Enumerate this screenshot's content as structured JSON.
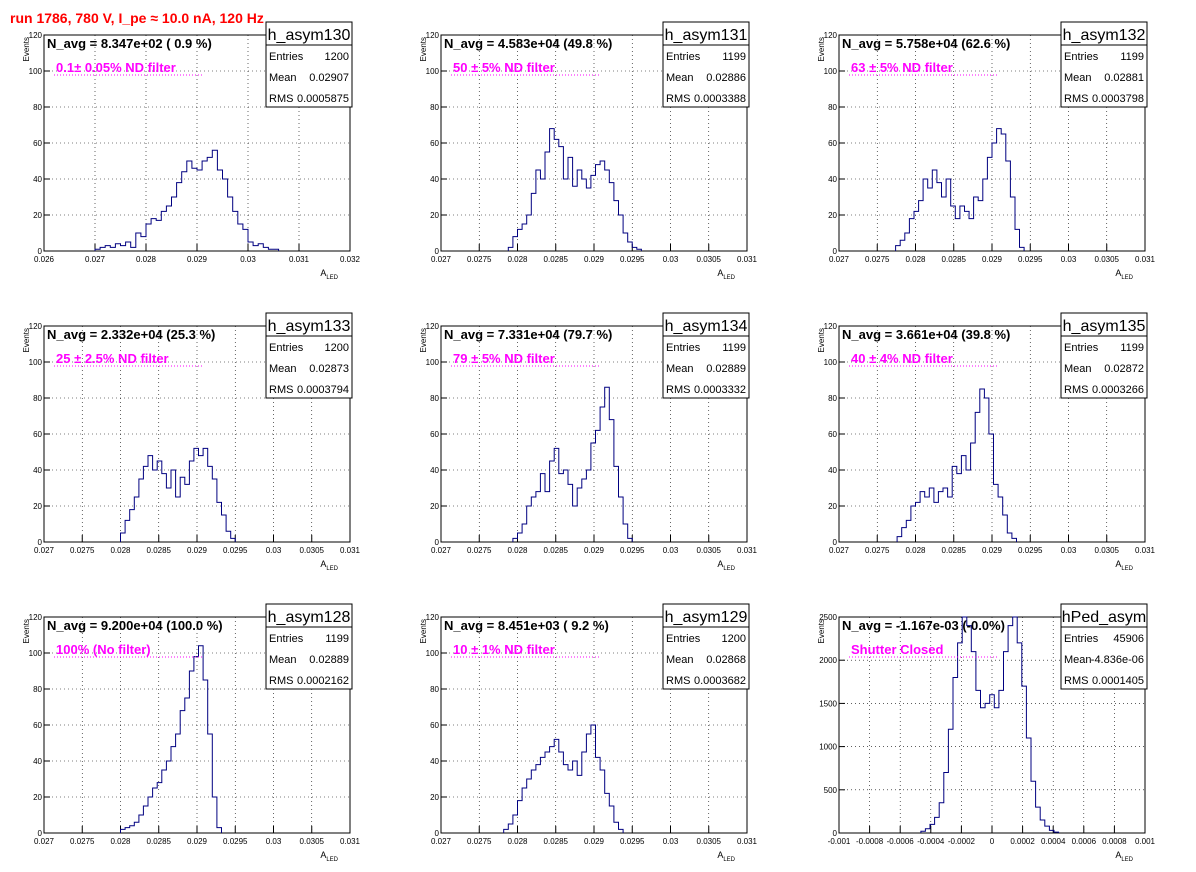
{
  "page_title": "run 1786,   780 V, I_pe ≈ 10.0 nA, 120 Hz",
  "colors": {
    "title": "#ff0000",
    "annotation": "#ff00ff",
    "line": "#000080",
    "grid": "#000000"
  },
  "common": {
    "ylabel": "Events",
    "xlabel": "A",
    "xlabel_sub": "LED"
  },
  "chart_data": [
    {
      "type": "histogram",
      "name": "h_asym130",
      "navg": "N_avg = 8.347e+02 ( 0.9 %)",
      "annotation": "0.1± 0.05% ND filter",
      "stats": {
        "Entries": "1200",
        "Mean": "0.02907",
        "RMS": "0.0005875"
      },
      "xlim": [
        0.026,
        0.032
      ],
      "ylim": [
        0,
        120
      ],
      "xticks": [
        "0.026",
        "0.027",
        "0.028",
        "0.029",
        "0.03",
        "0.031",
        "0.032"
      ],
      "xtick_values": [
        0.026,
        0.027,
        0.028,
        0.029,
        0.03,
        0.031,
        0.032
      ],
      "yticks": [
        0,
        20,
        40,
        60,
        80,
        100,
        120
      ],
      "bin_centers": [
        0.02705,
        0.02715,
        0.02725,
        0.02735,
        0.02745,
        0.02755,
        0.02765,
        0.02775,
        0.02785,
        0.02795,
        0.02805,
        0.02815,
        0.02825,
        0.02835,
        0.02845,
        0.02855,
        0.02865,
        0.02875,
        0.02885,
        0.02895,
        0.02905,
        0.02915,
        0.02925,
        0.02935,
        0.02945,
        0.02955,
        0.02965,
        0.02975,
        0.02985,
        0.02995,
        0.03005,
        0.03015,
        0.03025,
        0.03035,
        0.03045,
        0.03055
      ],
      "counts": [
        1,
        2,
        3,
        2,
        4,
        3,
        5,
        2,
        10,
        8,
        15,
        18,
        17,
        22,
        25,
        30,
        38,
        44,
        50,
        46,
        45,
        50,
        52,
        56,
        45,
        40,
        30,
        22,
        15,
        12,
        5,
        3,
        4,
        2,
        1,
        1
      ]
    },
    {
      "type": "histogram",
      "name": "h_asym131",
      "navg": "N_avg = 4.583e+04 (49.8 %)",
      "annotation": "50 ± 5% ND filter",
      "stats": {
        "Entries": "1199",
        "Mean": "0.02886",
        "RMS": "0.0003388"
      },
      "xlim": [
        0.027,
        0.031
      ],
      "ylim": [
        0,
        120
      ],
      "xticks": [
        "0.027",
        "0.0275",
        "0.028",
        "0.0285",
        "0.029",
        "0.0295",
        "0.03",
        "0.0305",
        "0.031"
      ],
      "xtick_values": [
        0.027,
        0.0275,
        0.028,
        0.0285,
        0.029,
        0.0295,
        0.03,
        0.0305,
        0.031
      ],
      "yticks": [
        0,
        20,
        40,
        60,
        80,
        100,
        120
      ],
      "bin_centers": [
        0.02791,
        0.02797,
        0.02803,
        0.02809,
        0.02815,
        0.02821,
        0.02827,
        0.02833,
        0.02839,
        0.02845,
        0.02851,
        0.02857,
        0.02863,
        0.02869,
        0.02875,
        0.02881,
        0.02887,
        0.02893,
        0.02899,
        0.02905,
        0.02911,
        0.02917,
        0.02923,
        0.02929,
        0.02935,
        0.02941,
        0.02947,
        0.02953,
        0.02959
      ],
      "counts": [
        2,
        8,
        12,
        15,
        20,
        32,
        45,
        40,
        55,
        68,
        62,
        58,
        40,
        52,
        36,
        45,
        40,
        35,
        42,
        48,
        50,
        45,
        38,
        28,
        20,
        10,
        5,
        2,
        1
      ]
    },
    {
      "type": "histogram",
      "name": "h_asym132",
      "navg": "N_avg = 5.758e+04 (62.6 %)",
      "annotation": "63 ± 5% ND filter",
      "stats": {
        "Entries": "1199",
        "Mean": "0.02881",
        "RMS": "0.0003798"
      },
      "xlim": [
        0.027,
        0.031
      ],
      "ylim": [
        0,
        120
      ],
      "xticks": [
        "0.027",
        "0.0275",
        "0.028",
        "0.0285",
        "0.029",
        "0.0295",
        "0.03",
        "0.0305",
        "0.031"
      ],
      "xtick_values": [
        0.027,
        0.0275,
        0.028,
        0.0285,
        0.029,
        0.0295,
        0.03,
        0.0305,
        0.031
      ],
      "yticks": [
        0,
        20,
        40,
        60,
        80,
        100,
        120
      ],
      "bin_centers": [
        0.02777,
        0.02783,
        0.02789,
        0.02795,
        0.02801,
        0.02807,
        0.02813,
        0.02819,
        0.02825,
        0.02831,
        0.02837,
        0.02843,
        0.02849,
        0.02855,
        0.02861,
        0.02867,
        0.02873,
        0.02879,
        0.02885,
        0.02891,
        0.02897,
        0.02903,
        0.02909,
        0.02915,
        0.02921,
        0.02927,
        0.02933,
        0.02939
      ],
      "counts": [
        3,
        6,
        10,
        18,
        22,
        28,
        40,
        35,
        45,
        38,
        30,
        40,
        25,
        18,
        25,
        22,
        18,
        30,
        28,
        40,
        52,
        60,
        68,
        65,
        50,
        30,
        12,
        2
      ]
    },
    {
      "type": "histogram",
      "name": "h_asym133",
      "navg": "N_avg = 2.332e+04 (25.3 %)",
      "annotation": "25 ± 2.5% ND filter",
      "stats": {
        "Entries": "1200",
        "Mean": "0.02873",
        "RMS": "0.0003794"
      },
      "xlim": [
        0.027,
        0.031
      ],
      "ylim": [
        0,
        120
      ],
      "xticks": [
        "0.027",
        "0.0275",
        "0.028",
        "0.0285",
        "0.029",
        "0.0295",
        "0.03",
        "0.0305",
        "0.031"
      ],
      "xtick_values": [
        0.027,
        0.0275,
        0.028,
        0.0285,
        0.029,
        0.0295,
        0.03,
        0.0305,
        0.031
      ],
      "yticks": [
        0,
        20,
        40,
        60,
        80,
        100,
        120
      ],
      "bin_centers": [
        0.02803,
        0.02809,
        0.02815,
        0.02821,
        0.02827,
        0.02833,
        0.02839,
        0.02845,
        0.02851,
        0.02857,
        0.02863,
        0.02869,
        0.02875,
        0.02881,
        0.02887,
        0.02893,
        0.02899,
        0.02905,
        0.02911,
        0.02917,
        0.02923,
        0.02929,
        0.02935,
        0.02941,
        0.02947
      ],
      "counts": [
        5,
        12,
        18,
        25,
        35,
        42,
        48,
        40,
        45,
        38,
        30,
        40,
        25,
        36,
        32,
        45,
        52,
        48,
        52,
        42,
        35,
        22,
        15,
        6,
        2
      ]
    },
    {
      "type": "histogram",
      "name": "h_asym134",
      "navg": "N_avg = 7.331e+04 (79.7 %)",
      "annotation": "79 ± 5% ND filter",
      "stats": {
        "Entries": "1199",
        "Mean": "0.02889",
        "RMS": "0.0003332"
      },
      "xlim": [
        0.027,
        0.031
      ],
      "ylim": [
        0,
        120
      ],
      "xticks": [
        "0.027",
        "0.0275",
        "0.028",
        "0.0285",
        "0.029",
        "0.0295",
        "0.03",
        "0.0305",
        "0.031"
      ],
      "xtick_values": [
        0.027,
        0.0275,
        0.028,
        0.0285,
        0.029,
        0.0295,
        0.03,
        0.0305,
        0.031
      ],
      "yticks": [
        0,
        20,
        40,
        60,
        80,
        100,
        120
      ],
      "bin_centers": [
        0.02797,
        0.02803,
        0.02809,
        0.02815,
        0.02821,
        0.02827,
        0.02833,
        0.02839,
        0.02845,
        0.02851,
        0.02857,
        0.02863,
        0.02869,
        0.02875,
        0.02881,
        0.02887,
        0.02893,
        0.02899,
        0.02905,
        0.02911,
        0.02917,
        0.02923,
        0.02929,
        0.02935,
        0.02941,
        0.02947
      ],
      "counts": [
        2,
        5,
        10,
        20,
        25,
        28,
        38,
        28,
        45,
        52,
        38,
        40,
        32,
        20,
        30,
        35,
        40,
        55,
        62,
        75,
        86,
        68,
        42,
        25,
        10,
        2
      ]
    },
    {
      "type": "histogram",
      "name": "h_asym135",
      "navg": "N_avg = 3.661e+04 (39.8 %)",
      "annotation": "40 ± 4% ND filter",
      "stats": {
        "Entries": "1199",
        "Mean": "0.02872",
        "RMS": "0.0003266"
      },
      "xlim": [
        0.027,
        0.031
      ],
      "ylim": [
        0,
        120
      ],
      "xticks": [
        "0.027",
        "0.0275",
        "0.028",
        "0.0285",
        "0.029",
        "0.0295",
        "0.03",
        "0.0305",
        "0.031"
      ],
      "xtick_values": [
        0.027,
        0.0275,
        0.028,
        0.0285,
        0.029,
        0.0295,
        0.03,
        0.0305,
        0.031
      ],
      "yticks": [
        0,
        20,
        40,
        60,
        80,
        100,
        120
      ],
      "bin_centers": [
        0.02779,
        0.02785,
        0.02791,
        0.02797,
        0.02803,
        0.02809,
        0.02815,
        0.02821,
        0.02827,
        0.02833,
        0.02839,
        0.02845,
        0.02851,
        0.02857,
        0.02863,
        0.02869,
        0.02875,
        0.02881,
        0.02887,
        0.02893,
        0.02899,
        0.02905,
        0.02911,
        0.02917,
        0.02923,
        0.02929
      ],
      "counts": [
        3,
        8,
        12,
        20,
        22,
        28,
        25,
        30,
        22,
        28,
        30,
        25,
        42,
        38,
        48,
        40,
        55,
        72,
        85,
        80,
        60,
        32,
        25,
        15,
        5,
        2
      ]
    },
    {
      "type": "histogram",
      "name": "h_asym128",
      "navg": "N_avg = 9.200e+04 (100.0 %)",
      "annotation": "100% (No filter)",
      "stats": {
        "Entries": "1199",
        "Mean": "0.02889",
        "RMS": "0.0002162"
      },
      "xlim": [
        0.027,
        0.031
      ],
      "ylim": [
        0,
        120
      ],
      "xticks": [
        "0.027",
        "0.0275",
        "0.028",
        "0.0285",
        "0.029",
        "0.0295",
        "0.03",
        "0.0305",
        "0.031"
      ],
      "xtick_values": [
        0.027,
        0.0275,
        0.028,
        0.0285,
        0.029,
        0.0295,
        0.03,
        0.0305,
        0.031
      ],
      "yticks": [
        0,
        20,
        40,
        60,
        80,
        100,
        120
      ],
      "bin_centers": [
        0.02803,
        0.02809,
        0.02815,
        0.02821,
        0.02827,
        0.02833,
        0.02839,
        0.02845,
        0.02851,
        0.02857,
        0.02863,
        0.02869,
        0.02875,
        0.02881,
        0.02887,
        0.02893,
        0.02899,
        0.02905,
        0.02911,
        0.02917,
        0.02923,
        0.02929
      ],
      "counts": [
        2,
        3,
        4,
        6,
        10,
        15,
        20,
        25,
        28,
        35,
        40,
        48,
        55,
        68,
        75,
        90,
        98,
        104,
        85,
        55,
        20,
        3
      ]
    },
    {
      "type": "histogram",
      "name": "h_asym129",
      "navg": "N_avg = 8.451e+03 ( 9.2 %)",
      "annotation": "10 ± 1% ND filter",
      "stats": {
        "Entries": "1200",
        "Mean": "0.02868",
        "RMS": "0.0003682"
      },
      "xlim": [
        0.027,
        0.031
      ],
      "ylim": [
        0,
        120
      ],
      "xticks": [
        "0.027",
        "0.0275",
        "0.028",
        "0.0285",
        "0.029",
        "0.0295",
        "0.03",
        "0.0305",
        "0.031"
      ],
      "xtick_values": [
        0.027,
        0.0275,
        0.028,
        0.0285,
        0.029,
        0.0295,
        0.03,
        0.0305,
        0.031
      ],
      "yticks": [
        0,
        20,
        40,
        60,
        80,
        100,
        120
      ],
      "bin_centers": [
        0.02785,
        0.02791,
        0.02797,
        0.02803,
        0.02809,
        0.02815,
        0.02821,
        0.02827,
        0.02833,
        0.02839,
        0.02845,
        0.02851,
        0.02857,
        0.02863,
        0.02869,
        0.02875,
        0.02881,
        0.02887,
        0.02893,
        0.02899,
        0.02905,
        0.02911,
        0.02917,
        0.02923,
        0.02929,
        0.02935
      ],
      "counts": [
        2,
        5,
        10,
        18,
        25,
        30,
        35,
        38,
        42,
        45,
        48,
        52,
        45,
        38,
        35,
        40,
        32,
        45,
        55,
        60,
        42,
        35,
        22,
        15,
        6,
        2
      ]
    },
    {
      "type": "histogram",
      "name": "hPed_asym",
      "navg": "N_avg = -1.167e-03 (-0.0%)",
      "annotation": "Shutter Closed",
      "stats": {
        "Entries": "45906",
        "Mean": "-4.836e-06",
        "RMS": "0.0001405"
      },
      "xlim": [
        -0.001,
        0.001
      ],
      "ylim": [
        0,
        2500
      ],
      "xticks": [
        "-0.001",
        "-0.0008",
        "-0.0006",
        "-0.0004",
        "-0.0002",
        "0",
        "0.0002",
        "0.0004",
        "0.0006",
        "0.0008",
        "0.001"
      ],
      "xtick_values": [
        -0.001,
        -0.0008,
        -0.0006,
        -0.0004,
        -0.0002,
        0,
        0.0002,
        0.0004,
        0.0006,
        0.0008,
        0.001
      ],
      "yticks": [
        0,
        500,
        1000,
        1500,
        2000,
        2500
      ],
      "bin_centers": [
        -0.00045,
        -0.00042,
        -0.00039,
        -0.00036,
        -0.00033,
        -0.0003,
        -0.00027,
        -0.00024,
        -0.00021,
        -0.00018,
        -0.00015,
        -0.00012,
        -9e-05,
        -6e-05,
        -3e-05,
        0,
        3e-05,
        6e-05,
        9e-05,
        0.00012,
        0.00015,
        0.00018,
        0.00021,
        0.00024,
        0.00027,
        0.0003,
        0.00033,
        0.00036,
        0.00039,
        0.00042
      ],
      "counts": [
        20,
        50,
        100,
        180,
        350,
        700,
        1200,
        1800,
        2200,
        2500,
        2400,
        2100,
        1650,
        1450,
        1500,
        1600,
        1450,
        1650,
        2100,
        2400,
        2500,
        2200,
        1700,
        1100,
        600,
        300,
        150,
        80,
        30,
        10
      ]
    }
  ]
}
